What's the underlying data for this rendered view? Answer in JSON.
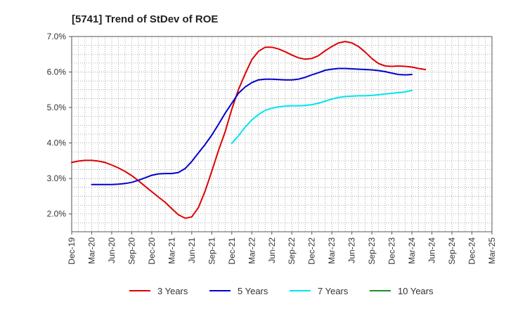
{
  "chart_data": {
    "type": "line",
    "title": "[5741]  Trend of StDev of ROE",
    "xlabel": "",
    "ylabel": "",
    "grid": true,
    "legend_position": "bottom",
    "x_tick_labels": [
      "Dec-19",
      "Mar-20",
      "Jun-20",
      "Sep-20",
      "Dec-20",
      "Mar-21",
      "Jun-21",
      "Sep-21",
      "Dec-21",
      "Mar-22",
      "Jun-22",
      "Sep-22",
      "Dec-22",
      "Mar-23",
      "Jun-23",
      "Sep-23",
      "Dec-23",
      "Mar-24",
      "Jun-24",
      "Sep-24",
      "Dec-24",
      "Mar-25"
    ],
    "y_tick_labels": [
      "2.0%",
      "3.0%",
      "4.0%",
      "5.0%",
      "6.0%",
      "7.0%"
    ],
    "ylim": [
      1.5,
      7.0
    ],
    "y_ticks": [
      2.0,
      3.0,
      4.0,
      5.0,
      6.0,
      7.0
    ],
    "series": [
      {
        "name": "3 Years",
        "color": "#dd0000",
        "points": [
          [
            0,
            3.45
          ],
          [
            0.33,
            3.49
          ],
          [
            0.67,
            3.51
          ],
          [
            1.0,
            3.51
          ],
          [
            1.33,
            3.49
          ],
          [
            1.67,
            3.45
          ],
          [
            2.0,
            3.38
          ],
          [
            2.33,
            3.3
          ],
          [
            2.67,
            3.2
          ],
          [
            3.0,
            3.08
          ],
          [
            3.33,
            2.94
          ],
          [
            3.67,
            2.78
          ],
          [
            4.0,
            2.63
          ],
          [
            4.33,
            2.48
          ],
          [
            4.67,
            2.33
          ],
          [
            5.0,
            2.15
          ],
          [
            5.33,
            1.98
          ],
          [
            5.67,
            1.88
          ],
          [
            6.0,
            1.92
          ],
          [
            6.33,
            2.18
          ],
          [
            6.67,
            2.65
          ],
          [
            7.0,
            3.2
          ],
          [
            7.33,
            3.78
          ],
          [
            7.67,
            4.32
          ],
          [
            8.0,
            4.95
          ],
          [
            8.33,
            5.5
          ],
          [
            8.67,
            5.95
          ],
          [
            9.0,
            6.35
          ],
          [
            9.33,
            6.58
          ],
          [
            9.67,
            6.7
          ],
          [
            10.0,
            6.7
          ],
          [
            10.33,
            6.65
          ],
          [
            10.67,
            6.57
          ],
          [
            11.0,
            6.48
          ],
          [
            11.33,
            6.4
          ],
          [
            11.67,
            6.36
          ],
          [
            12.0,
            6.38
          ],
          [
            12.33,
            6.46
          ],
          [
            12.67,
            6.6
          ],
          [
            13.0,
            6.72
          ],
          [
            13.33,
            6.82
          ],
          [
            13.67,
            6.86
          ],
          [
            14.0,
            6.82
          ],
          [
            14.33,
            6.72
          ],
          [
            14.67,
            6.56
          ],
          [
            15.0,
            6.38
          ],
          [
            15.33,
            6.24
          ],
          [
            15.67,
            6.17
          ],
          [
            16.0,
            6.16
          ],
          [
            16.33,
            6.17
          ],
          [
            16.67,
            6.16
          ],
          [
            17.0,
            6.14
          ],
          [
            17.33,
            6.1
          ],
          [
            17.67,
            6.07
          ]
        ]
      },
      {
        "name": "5 Years",
        "color": "#0000cc",
        "points": [
          [
            1.0,
            2.83
          ],
          [
            1.33,
            2.83
          ],
          [
            1.67,
            2.83
          ],
          [
            2.0,
            2.83
          ],
          [
            2.33,
            2.84
          ],
          [
            2.67,
            2.86
          ],
          [
            3.0,
            2.89
          ],
          [
            3.33,
            2.95
          ],
          [
            3.67,
            3.02
          ],
          [
            4.0,
            3.09
          ],
          [
            4.33,
            3.13
          ],
          [
            4.67,
            3.14
          ],
          [
            5.0,
            3.14
          ],
          [
            5.33,
            3.17
          ],
          [
            5.67,
            3.28
          ],
          [
            6.0,
            3.48
          ],
          [
            6.33,
            3.72
          ],
          [
            6.67,
            3.96
          ],
          [
            7.0,
            4.22
          ],
          [
            7.33,
            4.52
          ],
          [
            7.67,
            4.84
          ],
          [
            8.0,
            5.12
          ],
          [
            8.33,
            5.4
          ],
          [
            8.67,
            5.58
          ],
          [
            9.0,
            5.7
          ],
          [
            9.33,
            5.78
          ],
          [
            9.67,
            5.8
          ],
          [
            10.0,
            5.8
          ],
          [
            10.33,
            5.79
          ],
          [
            10.67,
            5.78
          ],
          [
            11.0,
            5.78
          ],
          [
            11.33,
            5.8
          ],
          [
            11.67,
            5.85
          ],
          [
            12.0,
            5.92
          ],
          [
            12.33,
            5.98
          ],
          [
            12.67,
            6.05
          ],
          [
            13.0,
            6.08
          ],
          [
            13.33,
            6.1
          ],
          [
            13.67,
            6.1
          ],
          [
            14.0,
            6.09
          ],
          [
            14.33,
            6.08
          ],
          [
            14.67,
            6.07
          ],
          [
            15.0,
            6.06
          ],
          [
            15.33,
            6.04
          ],
          [
            15.67,
            6.01
          ],
          [
            16.0,
            5.97
          ],
          [
            16.33,
            5.93
          ],
          [
            16.67,
            5.92
          ],
          [
            17.0,
            5.93
          ]
        ]
      },
      {
        "name": "7 Years",
        "color": "#00e5ee",
        "points": [
          [
            8.0,
            3.99
          ],
          [
            8.33,
            4.2
          ],
          [
            8.67,
            4.45
          ],
          [
            9.0,
            4.65
          ],
          [
            9.33,
            4.8
          ],
          [
            9.67,
            4.92
          ],
          [
            10.0,
            4.98
          ],
          [
            10.33,
            5.02
          ],
          [
            10.67,
            5.04
          ],
          [
            11.0,
            5.05
          ],
          [
            11.33,
            5.05
          ],
          [
            11.67,
            5.06
          ],
          [
            12.0,
            5.08
          ],
          [
            12.33,
            5.12
          ],
          [
            12.67,
            5.18
          ],
          [
            13.0,
            5.24
          ],
          [
            13.33,
            5.28
          ],
          [
            13.67,
            5.31
          ],
          [
            14.0,
            5.32
          ],
          [
            14.33,
            5.33
          ],
          [
            14.67,
            5.33
          ],
          [
            15.0,
            5.34
          ],
          [
            15.33,
            5.36
          ],
          [
            15.67,
            5.38
          ],
          [
            16.0,
            5.4
          ],
          [
            16.33,
            5.42
          ],
          [
            16.67,
            5.44
          ],
          [
            17.0,
            5.48
          ]
        ]
      },
      {
        "name": "10 Years",
        "color": "#228b22",
        "points": []
      }
    ]
  }
}
